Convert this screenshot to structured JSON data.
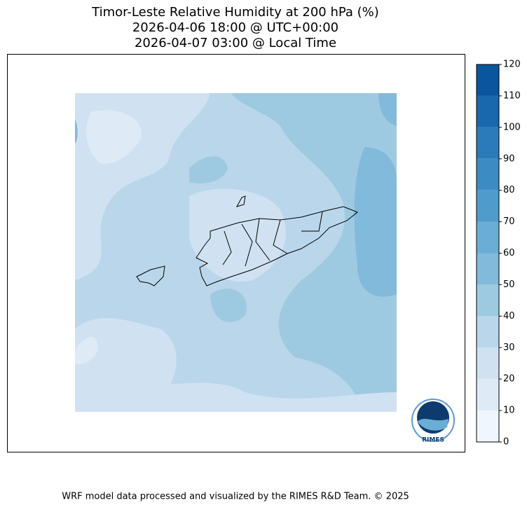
{
  "chart_data": {
    "type": "contour-map",
    "title": [
      "Timor-Leste Relative Humidity at 200 hPa (%)",
      "2026-04-06 18:00 @ UTC+00:00",
      "2026-04-07 03:00 @ Local Time"
    ],
    "colorbar": {
      "ticks": [
        0,
        10,
        20,
        30,
        40,
        50,
        60,
        70,
        80,
        90,
        100,
        110,
        120
      ],
      "lim": [
        0,
        120
      ],
      "colors": [
        "#f0f6fd",
        "#deebf7",
        "#d0e2f2",
        "#bad6eb",
        "#9ecae1",
        "#82badb",
        "#6aaed6",
        "#4f9bcb",
        "#3c8cc3",
        "#2b7bba",
        "#1967ad",
        "#0b559f"
      ]
    },
    "logo_text": "RIMES",
    "footer": "WRF model data processed and visualized by the RIMES R&D Team. © 2025"
  }
}
